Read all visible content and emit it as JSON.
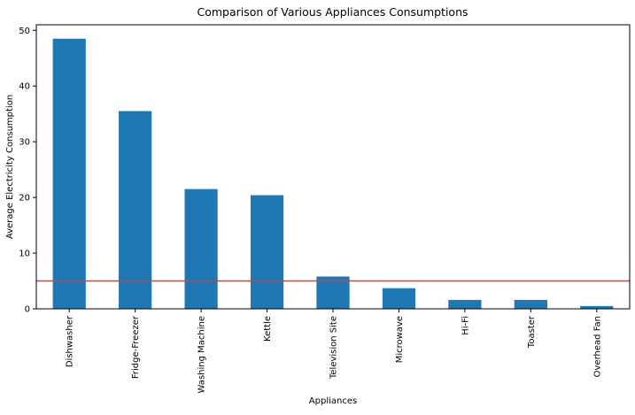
{
  "chart_data": {
    "type": "bar",
    "title": "Comparison of Various Appliances Consumptions",
    "xlabel": "Appliances",
    "ylabel": "Average Electricity Consumption",
    "categories": [
      "Dishwasher",
      "Fridge-Freezer",
      "Washing Machine",
      "Kettle",
      "Television Site",
      "Microwave",
      "Hi-Fi",
      "Toaster",
      "Overhead Fan"
    ],
    "values": [
      48.5,
      35.5,
      21.5,
      20.4,
      5.8,
      3.7,
      1.6,
      1.6,
      0.5
    ],
    "ylim": [
      0,
      51
    ],
    "yticks": [
      0,
      10,
      20,
      30,
      40,
      50
    ],
    "reference_line": {
      "value": 5,
      "color": "#e8392b"
    },
    "bar_color": "#1f77b4",
    "grid": false,
    "legend": "none"
  }
}
